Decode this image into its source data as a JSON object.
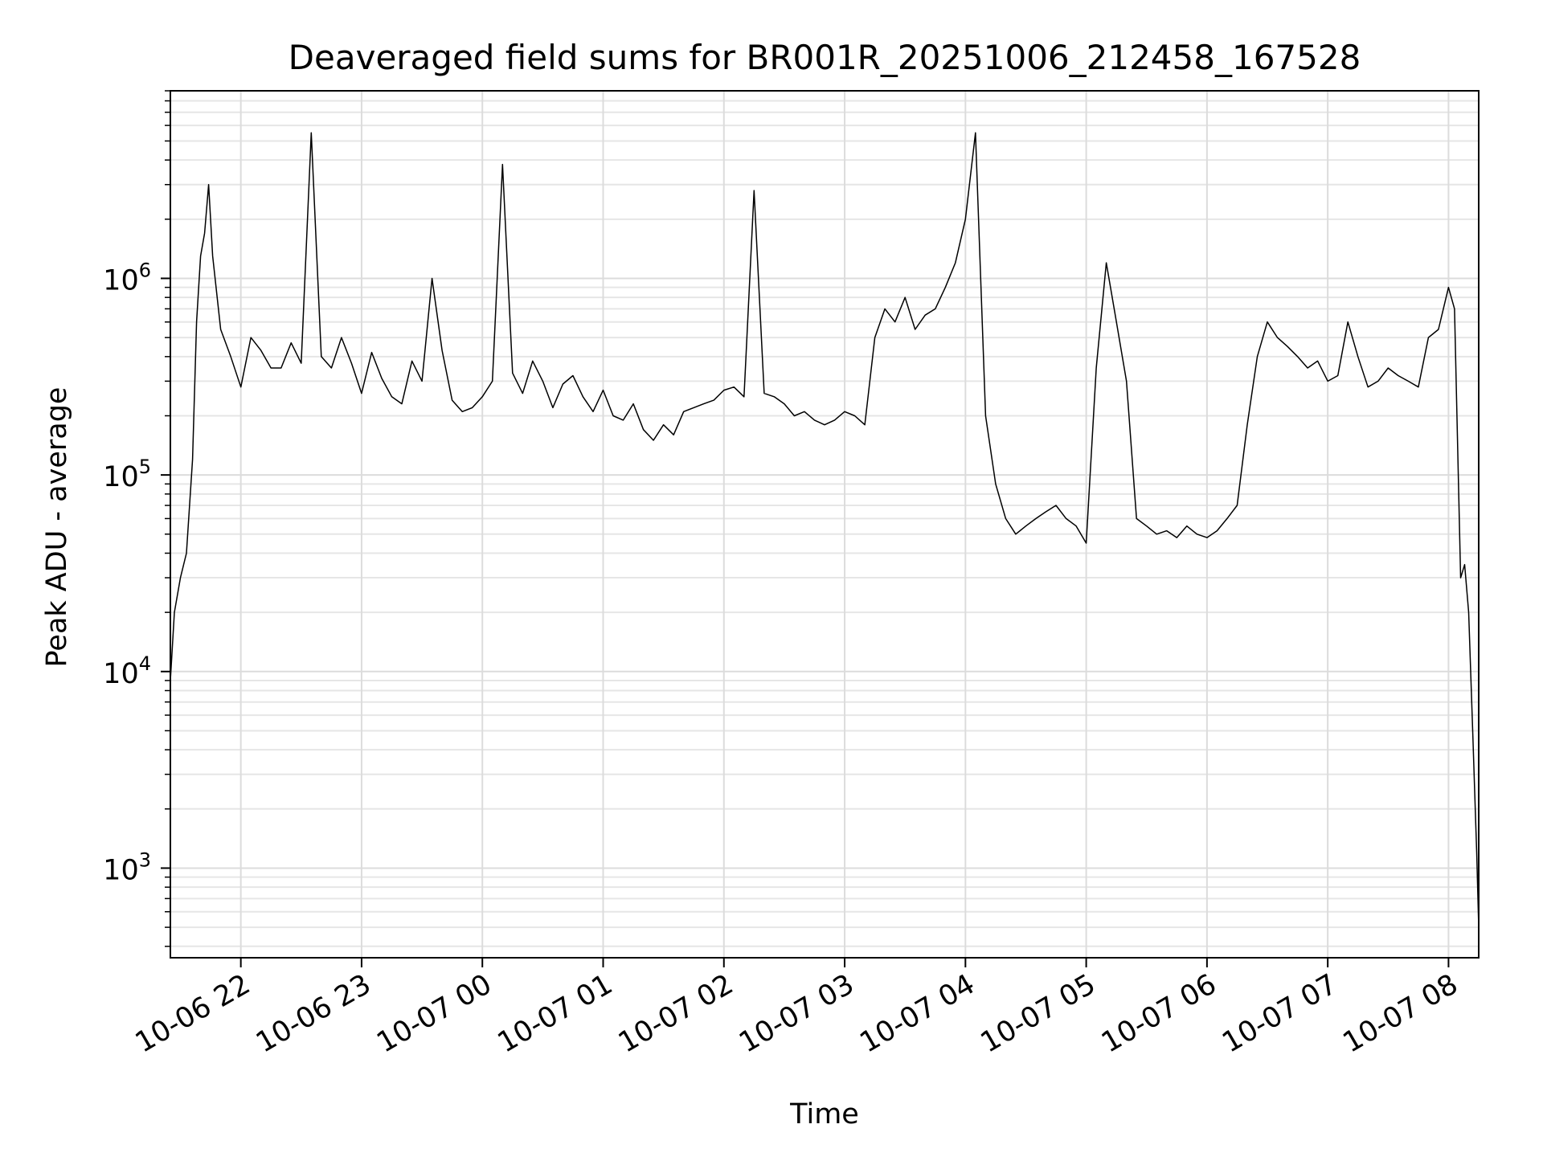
{
  "chart_data": {
    "type": "line",
    "title": "Deaveraged field sums for BR001R_20251006_212458_167528",
    "xlabel": "Time",
    "ylabel": "Peak ADU - average",
    "yscale": "log",
    "ylim": [
      350,
      9000000
    ],
    "xlim": [
      "2025-10-06 21:25",
      "2025-10-07 08:15"
    ],
    "grid": true,
    "series_color": "#000000",
    "x_ticks": [
      {
        "value": "2025-10-06 22:00",
        "label": "10-06 22"
      },
      {
        "value": "2025-10-06 23:00",
        "label": "10-06 23"
      },
      {
        "value": "2025-10-07 00:00",
        "label": "10-07 00"
      },
      {
        "value": "2025-10-07 01:00",
        "label": "10-07 01"
      },
      {
        "value": "2025-10-07 02:00",
        "label": "10-07 02"
      },
      {
        "value": "2025-10-07 03:00",
        "label": "10-07 03"
      },
      {
        "value": "2025-10-07 04:00",
        "label": "10-07 04"
      },
      {
        "value": "2025-10-07 05:00",
        "label": "10-07 05"
      },
      {
        "value": "2025-10-07 06:00",
        "label": "10-07 06"
      },
      {
        "value": "2025-10-07 07:00",
        "label": "10-07 07"
      },
      {
        "value": "2025-10-07 08:00",
        "label": "10-07 08"
      }
    ],
    "y_ticks": [
      {
        "value": 1000,
        "base": "10",
        "exp": "3"
      },
      {
        "value": 10000,
        "base": "10",
        "exp": "4"
      },
      {
        "value": 100000,
        "base": "10",
        "exp": "5"
      },
      {
        "value": 1000000,
        "base": "10",
        "exp": "6"
      }
    ],
    "series": [
      {
        "x": [
          "2025-10-06 21:25",
          "2025-10-06 21:27",
          "2025-10-06 21:30",
          "2025-10-06 21:33",
          "2025-10-06 21:36",
          "2025-10-06 21:38",
          "2025-10-06 21:40",
          "2025-10-06 21:42",
          "2025-10-06 21:44",
          "2025-10-06 21:46",
          "2025-10-06 21:50",
          "2025-10-06 21:55",
          "2025-10-06 22:00",
          "2025-10-06 22:05",
          "2025-10-06 22:10",
          "2025-10-06 22:15",
          "2025-10-06 22:20",
          "2025-10-06 22:25",
          "2025-10-06 22:30",
          "2025-10-06 22:35",
          "2025-10-06 22:40",
          "2025-10-06 22:45",
          "2025-10-06 22:50",
          "2025-10-06 22:55",
          "2025-10-06 23:00",
          "2025-10-06 23:05",
          "2025-10-06 23:10",
          "2025-10-06 23:15",
          "2025-10-06 23:20",
          "2025-10-06 23:25",
          "2025-10-06 23:30",
          "2025-10-06 23:35",
          "2025-10-06 23:40",
          "2025-10-06 23:45",
          "2025-10-06 23:50",
          "2025-10-06 23:55",
          "2025-10-07 00:00",
          "2025-10-07 00:05",
          "2025-10-07 00:10",
          "2025-10-07 00:15",
          "2025-10-07 00:20",
          "2025-10-07 00:25",
          "2025-10-07 00:30",
          "2025-10-07 00:35",
          "2025-10-07 00:40",
          "2025-10-07 00:45",
          "2025-10-07 00:50",
          "2025-10-07 00:55",
          "2025-10-07 01:00",
          "2025-10-07 01:05",
          "2025-10-07 01:10",
          "2025-10-07 01:15",
          "2025-10-07 01:20",
          "2025-10-07 01:25",
          "2025-10-07 01:30",
          "2025-10-07 01:35",
          "2025-10-07 01:40",
          "2025-10-07 01:45",
          "2025-10-07 01:50",
          "2025-10-07 01:55",
          "2025-10-07 02:00",
          "2025-10-07 02:05",
          "2025-10-07 02:10",
          "2025-10-07 02:15",
          "2025-10-07 02:20",
          "2025-10-07 02:25",
          "2025-10-07 02:30",
          "2025-10-07 02:35",
          "2025-10-07 02:40",
          "2025-10-07 02:45",
          "2025-10-07 02:50",
          "2025-10-07 02:55",
          "2025-10-07 03:00",
          "2025-10-07 03:05",
          "2025-10-07 03:10",
          "2025-10-07 03:15",
          "2025-10-07 03:20",
          "2025-10-07 03:25",
          "2025-10-07 03:30",
          "2025-10-07 03:35",
          "2025-10-07 03:40",
          "2025-10-07 03:45",
          "2025-10-07 03:50",
          "2025-10-07 03:55",
          "2025-10-07 04:00",
          "2025-10-07 04:05",
          "2025-10-07 04:10",
          "2025-10-07 04:15",
          "2025-10-07 04:20",
          "2025-10-07 04:25",
          "2025-10-07 04:30",
          "2025-10-07 04:35",
          "2025-10-07 04:40",
          "2025-10-07 04:45",
          "2025-10-07 04:50",
          "2025-10-07 04:55",
          "2025-10-07 05:00",
          "2025-10-07 05:05",
          "2025-10-07 05:10",
          "2025-10-07 05:15",
          "2025-10-07 05:20",
          "2025-10-07 05:25",
          "2025-10-07 05:30",
          "2025-10-07 05:35",
          "2025-10-07 05:40",
          "2025-10-07 05:45",
          "2025-10-07 05:50",
          "2025-10-07 05:55",
          "2025-10-07 06:00",
          "2025-10-07 06:05",
          "2025-10-07 06:10",
          "2025-10-07 06:15",
          "2025-10-07 06:20",
          "2025-10-07 06:25",
          "2025-10-07 06:30",
          "2025-10-07 06:35",
          "2025-10-07 06:40",
          "2025-10-07 06:45",
          "2025-10-07 06:50",
          "2025-10-07 06:55",
          "2025-10-07 07:00",
          "2025-10-07 07:05",
          "2025-10-07 07:10",
          "2025-10-07 07:15",
          "2025-10-07 07:20",
          "2025-10-07 07:25",
          "2025-10-07 07:30",
          "2025-10-07 07:35",
          "2025-10-07 07:40",
          "2025-10-07 07:45",
          "2025-10-07 07:50",
          "2025-10-07 07:55",
          "2025-10-07 08:00",
          "2025-10-07 08:03",
          "2025-10-07 08:06",
          "2025-10-07 08:08",
          "2025-10-07 08:10",
          "2025-10-07 08:12",
          "2025-10-07 08:14",
          "2025-10-07 08:15"
        ],
        "y": [
          9000,
          20000,
          30000,
          40000,
          120000,
          600000,
          1300000,
          1700000,
          3000000,
          1300000,
          550000,
          400000,
          280000,
          500000,
          430000,
          350000,
          350000,
          470000,
          370000,
          5500000,
          400000,
          350000,
          500000,
          370000,
          260000,
          420000,
          310000,
          250000,
          230000,
          380000,
          300000,
          1000000,
          430000,
          240000,
          210000,
          220000,
          250000,
          300000,
          3800000,
          330000,
          260000,
          380000,
          300000,
          220000,
          290000,
          320000,
          250000,
          210000,
          270000,
          200000,
          190000,
          230000,
          170000,
          150000,
          180000,
          160000,
          210000,
          220000,
          230000,
          240000,
          270000,
          280000,
          250000,
          2800000,
          260000,
          250000,
          230000,
          200000,
          210000,
          190000,
          180000,
          190000,
          210000,
          200000,
          180000,
          500000,
          700000,
          600000,
          800000,
          550000,
          650000,
          700000,
          900000,
          1200000,
          2000000,
          5500000,
          200000,
          90000,
          60000,
          50000,
          55000,
          60000,
          65000,
          70000,
          60000,
          55000,
          45000,
          350000,
          1200000,
          600000,
          300000,
          60000,
          55000,
          50000,
          52000,
          48000,
          55000,
          50000,
          48000,
          52000,
          60000,
          70000,
          180000,
          400000,
          600000,
          500000,
          450000,
          400000,
          350000,
          380000,
          300000,
          320000,
          600000,
          400000,
          280000,
          300000,
          350000,
          320000,
          300000,
          280000,
          500000,
          550000,
          900000,
          700000,
          30000,
          35000,
          20000,
          5000,
          1200,
          500
        ]
      }
    ]
  }
}
